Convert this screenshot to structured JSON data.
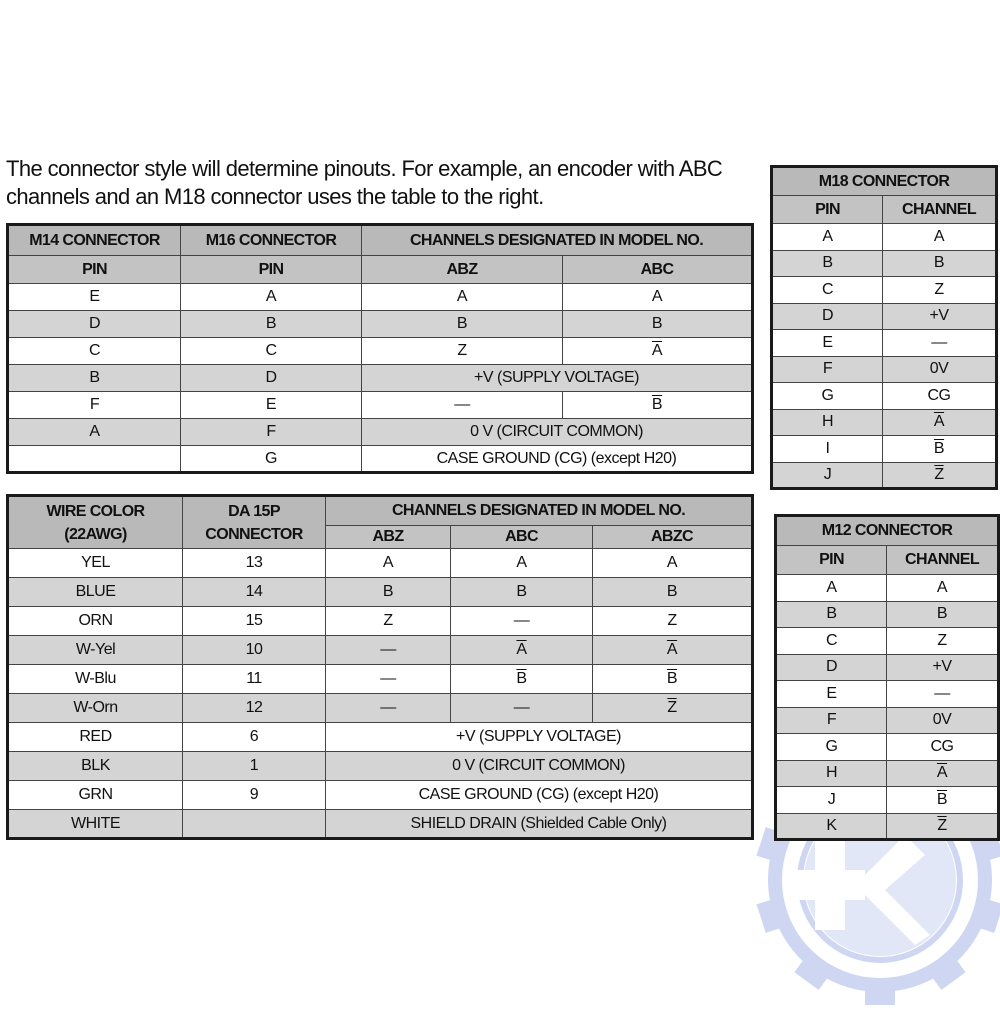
{
  "intro": {
    "line1": "The connector style will determine pinouts. For example, an encoder with ABC",
    "line2": "channels and an M18 connector uses the table to the right."
  },
  "watermark_color": "#a9b6e6",
  "tables": [
    {
      "id": "t1",
      "name": "m14-m16-pinout-table",
      "header": [
        [
          {
            "text": "M14 CONNECTOR"
          },
          {
            "text": "M16 CONNECTOR"
          },
          {
            "text": "CHANNELS DESIGNATED IN MODEL NO.",
            "colspan": 2
          }
        ],
        [
          {
            "text": "PIN"
          },
          {
            "text": "PIN"
          },
          {
            "text": "ABZ"
          },
          {
            "text": "ABC"
          }
        ]
      ],
      "rows": [
        [
          "E",
          "A",
          "A",
          "A"
        ],
        [
          "D",
          "B",
          "B",
          "B"
        ],
        [
          "C",
          "C",
          "Z",
          {
            "text": "A",
            "overline": true
          }
        ],
        [
          "B",
          "D",
          {
            "text": "+V (SUPPLY VOLTAGE)",
            "colspan": 2
          }
        ],
        [
          "F",
          "E",
          "—",
          {
            "text": "B",
            "overline": true
          }
        ],
        [
          "A",
          "F",
          {
            "text": "0 V (CIRCUIT COMMON)",
            "colspan": 2
          }
        ],
        [
          "",
          "G",
          {
            "text": "CASE GROUND (CG) (except H20)",
            "colspan": 2
          }
        ]
      ]
    },
    {
      "id": "t2",
      "name": "wire-color-pinout-table",
      "header": [
        [
          {
            "text": "WIRE COLOR\n(22AWG)",
            "rowspan": 2
          },
          {
            "text": "DA 15P\nCONNECTOR",
            "rowspan": 2
          },
          {
            "text": "CHANNELS DESIGNATED IN MODEL NO.",
            "colspan": 3
          }
        ],
        [
          {
            "text": "ABZ"
          },
          {
            "text": "ABC"
          },
          {
            "text": "ABZC"
          }
        ]
      ],
      "rows": [
        [
          "YEL",
          "13",
          "A",
          "A",
          "A"
        ],
        [
          "BLUE",
          "14",
          "B",
          "B",
          "B"
        ],
        [
          "ORN",
          "15",
          "Z",
          "—",
          "Z"
        ],
        [
          "W-Yel",
          "10",
          "—",
          {
            "text": "A",
            "overline": true
          },
          {
            "text": "A",
            "overline": true
          }
        ],
        [
          "W-Blu",
          "11",
          "—",
          {
            "text": "B",
            "overline": true
          },
          {
            "text": "B",
            "overline": true
          }
        ],
        [
          "W-Orn",
          "12",
          "—",
          "—",
          {
            "text": "Z",
            "overline": true
          }
        ],
        [
          "RED",
          "6",
          {
            "text": "+V (SUPPLY VOLTAGE)",
            "colspan": 3
          }
        ],
        [
          "BLK",
          "1",
          {
            "text": "0 V (CIRCUIT COMMON)",
            "colspan": 3
          }
        ],
        [
          "GRN",
          "9",
          {
            "text": "CASE GROUND (CG) (except H20)",
            "colspan": 3
          }
        ],
        [
          "WHITE",
          "",
          {
            "text": "SHIELD DRAIN (Shielded Cable Only)",
            "colspan": 3
          }
        ]
      ]
    },
    {
      "id": "t3",
      "name": "m18-connector-table",
      "header": [
        [
          {
            "text": "M18 CONNECTOR",
            "colspan": 2
          }
        ],
        [
          {
            "text": "PIN"
          },
          {
            "text": "CHANNEL"
          }
        ]
      ],
      "rows": [
        [
          "A",
          "A"
        ],
        [
          "B",
          "B"
        ],
        [
          "C",
          "Z"
        ],
        [
          "D",
          "+V"
        ],
        [
          "E",
          "—"
        ],
        [
          "F",
          "0V"
        ],
        [
          "G",
          "CG"
        ],
        [
          "H",
          {
            "text": "A",
            "overline": true
          }
        ],
        [
          "I",
          {
            "text": "B",
            "overline": true
          }
        ],
        [
          "J",
          {
            "text": "Z",
            "overline": true
          }
        ]
      ]
    },
    {
      "id": "t4",
      "name": "m12-connector-table",
      "header": [
        [
          {
            "text": "M12 CONNECTOR",
            "colspan": 2
          }
        ],
        [
          {
            "text": "PIN"
          },
          {
            "text": "CHANNEL"
          }
        ]
      ],
      "rows": [
        [
          "A",
          "A"
        ],
        [
          "B",
          "B"
        ],
        [
          "C",
          "Z"
        ],
        [
          "D",
          "+V"
        ],
        [
          "E",
          "—"
        ],
        [
          "F",
          "0V"
        ],
        [
          "G",
          "CG"
        ],
        [
          "H",
          {
            "text": "A",
            "overline": true
          }
        ],
        [
          "J",
          {
            "text": "B",
            "overline": true
          }
        ],
        [
          "K",
          {
            "text": "Z",
            "overline": true
          }
        ]
      ]
    }
  ]
}
